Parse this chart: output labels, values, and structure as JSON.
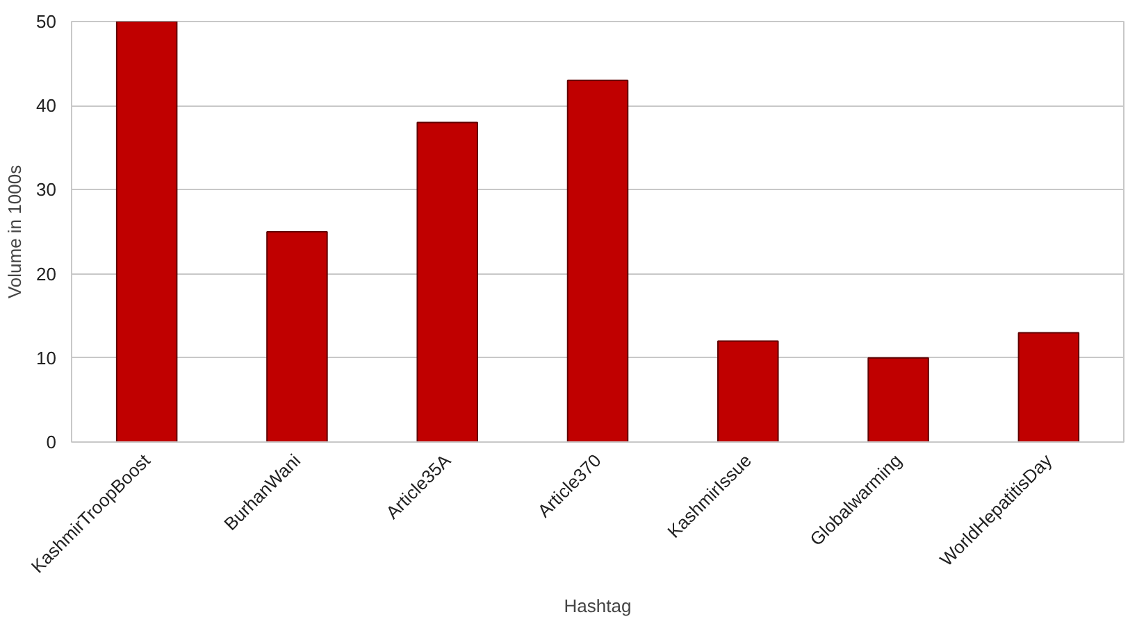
{
  "chart_data": {
    "type": "bar",
    "xlabel": "Hashtag",
    "ylabel": "Volume in 1000s",
    "categories": [
      "KashmirTroopBoost",
      "BurhanWani",
      "Article35A",
      "Article370",
      "KashmirIssue",
      "Globalwarming",
      "WorldHepatitisDay"
    ],
    "values": [
      50,
      25,
      38,
      43,
      12,
      10,
      13
    ],
    "color": "#c00000",
    "ylim": [
      0,
      50
    ],
    "yticks": [
      0,
      10,
      20,
      30,
      40,
      50
    ],
    "grid": "y"
  }
}
